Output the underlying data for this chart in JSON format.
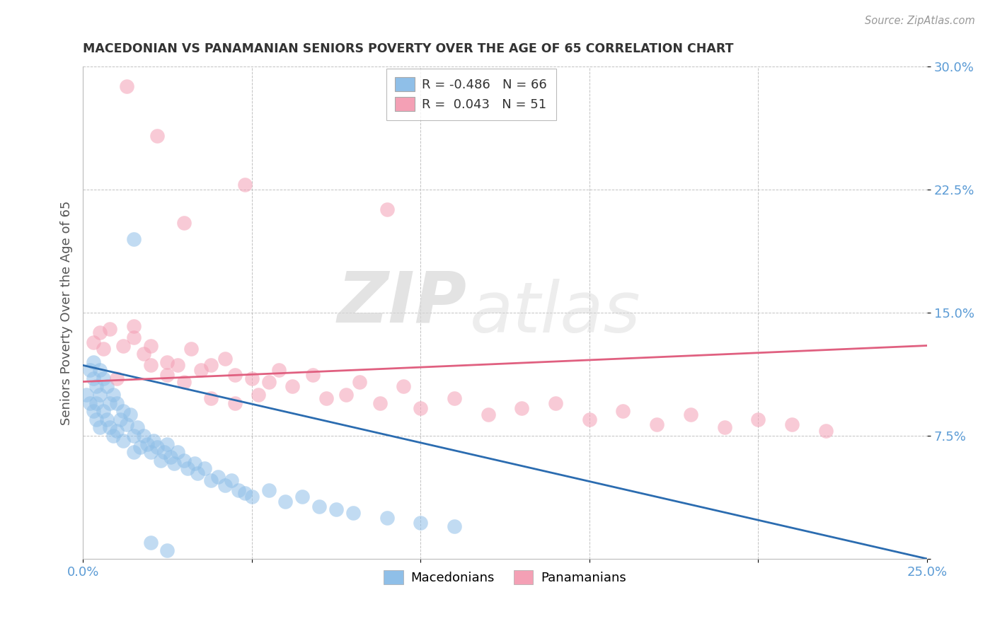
{
  "title": "MACEDONIAN VS PANAMANIAN SENIORS POVERTY OVER THE AGE OF 65 CORRELATION CHART",
  "source": "Source: ZipAtlas.com",
  "ylabel": "Seniors Poverty Over the Age of 65",
  "xlim": [
    0.0,
    0.25
  ],
  "ylim": [
    0.0,
    0.3
  ],
  "macedonian_R": -0.486,
  "macedonian_N": 66,
  "panamanian_R": 0.043,
  "panamanian_N": 51,
  "macedonian_color": "#8FBFE8",
  "panamanian_color": "#F4A0B5",
  "macedonian_line_color": "#2B6CB0",
  "panamanian_line_color": "#E06080",
  "watermark_zip": "ZIP",
  "watermark_atlas": "atlas",
  "mac_x": [
    0.001,
    0.002,
    0.002,
    0.003,
    0.003,
    0.003,
    0.004,
    0.004,
    0.004,
    0.005,
    0.005,
    0.005,
    0.006,
    0.006,
    0.007,
    0.007,
    0.008,
    0.008,
    0.009,
    0.009,
    0.01,
    0.01,
    0.011,
    0.012,
    0.012,
    0.013,
    0.014,
    0.015,
    0.015,
    0.016,
    0.017,
    0.018,
    0.019,
    0.02,
    0.021,
    0.022,
    0.023,
    0.024,
    0.025,
    0.026,
    0.027,
    0.028,
    0.03,
    0.031,
    0.033,
    0.034,
    0.036,
    0.038,
    0.04,
    0.042,
    0.044,
    0.046,
    0.048,
    0.05,
    0.055,
    0.06,
    0.065,
    0.07,
    0.075,
    0.08,
    0.09,
    0.1,
    0.11,
    0.015,
    0.02,
    0.025
  ],
  "mac_y": [
    0.1,
    0.115,
    0.095,
    0.11,
    0.12,
    0.09,
    0.105,
    0.095,
    0.085,
    0.115,
    0.1,
    0.08,
    0.11,
    0.09,
    0.105,
    0.085,
    0.095,
    0.08,
    0.1,
    0.075,
    0.095,
    0.078,
    0.085,
    0.09,
    0.072,
    0.082,
    0.088,
    0.075,
    0.065,
    0.08,
    0.068,
    0.075,
    0.07,
    0.065,
    0.072,
    0.068,
    0.06,
    0.065,
    0.07,
    0.062,
    0.058,
    0.065,
    0.06,
    0.055,
    0.058,
    0.052,
    0.055,
    0.048,
    0.05,
    0.045,
    0.048,
    0.042,
    0.04,
    0.038,
    0.042,
    0.035,
    0.038,
    0.032,
    0.03,
    0.028,
    0.025,
    0.022,
    0.02,
    0.195,
    0.01,
    0.005
  ],
  "pan_x": [
    0.013,
    0.022,
    0.03,
    0.048,
    0.09,
    0.005,
    0.008,
    0.012,
    0.015,
    0.018,
    0.02,
    0.025,
    0.028,
    0.032,
    0.035,
    0.038,
    0.042,
    0.045,
    0.05,
    0.055,
    0.058,
    0.062,
    0.068,
    0.072,
    0.078,
    0.082,
    0.088,
    0.095,
    0.1,
    0.11,
    0.12,
    0.13,
    0.14,
    0.15,
    0.16,
    0.17,
    0.18,
    0.19,
    0.2,
    0.21,
    0.22,
    0.003,
    0.006,
    0.01,
    0.015,
    0.02,
    0.025,
    0.03,
    0.038,
    0.045,
    0.052
  ],
  "pan_y": [
    0.288,
    0.258,
    0.205,
    0.228,
    0.213,
    0.138,
    0.14,
    0.13,
    0.142,
    0.125,
    0.13,
    0.12,
    0.118,
    0.128,
    0.115,
    0.118,
    0.122,
    0.112,
    0.11,
    0.108,
    0.115,
    0.105,
    0.112,
    0.098,
    0.1,
    0.108,
    0.095,
    0.105,
    0.092,
    0.098,
    0.088,
    0.092,
    0.095,
    0.085,
    0.09,
    0.082,
    0.088,
    0.08,
    0.085,
    0.082,
    0.078,
    0.132,
    0.128,
    0.11,
    0.135,
    0.118,
    0.112,
    0.108,
    0.098,
    0.095,
    0.1
  ],
  "mac_line_x": [
    0.0,
    0.25
  ],
  "mac_line_y": [
    0.118,
    0.0
  ],
  "pan_line_x": [
    0.0,
    0.25
  ],
  "pan_line_y": [
    0.108,
    0.13
  ]
}
